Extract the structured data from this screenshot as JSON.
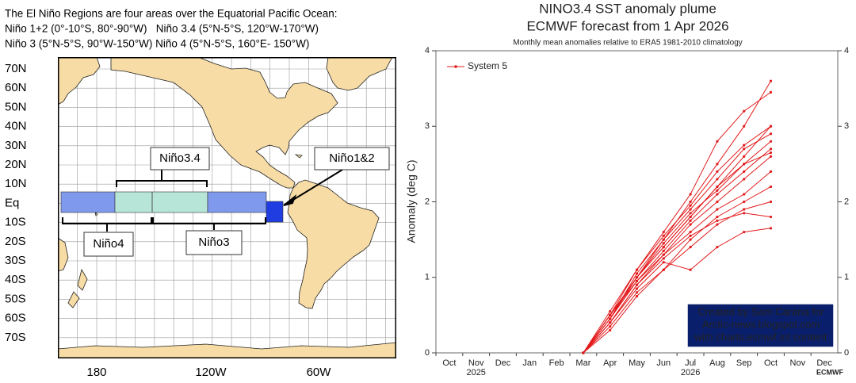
{
  "map": {
    "header": [
      "The El Niño Regions are four areas over the Equatorial Pacific Ocean:",
      "Niño 1+2 (0°-10°S, 80°-90°W)   Niño 3.4 (5°N-5°S, 120°W-170°W)",
      "Niño 3 (5°N-5°S, 90°W-150°W) Niño 4 (5°N-5°S, 160°E- 150°W)"
    ],
    "lat_labels": [
      "70N",
      "60N",
      "50N",
      "40N",
      "30N",
      "20N",
      "10N",
      "Eq",
      "10S",
      "20S",
      "30S",
      "40S",
      "50S",
      "60S",
      "70S"
    ],
    "lon_labels": [
      "180",
      "120W",
      "60W"
    ],
    "regions": {
      "nino34": "Niño3.4",
      "nino12": "Niño1&2",
      "nino4": "Niño4",
      "nino3": "Niño3"
    }
  },
  "chart_data": {
    "type": "line",
    "title": "NINO3.4 SST anomaly plume",
    "subtitle": "ECMWF forecast from 1 Apr 2026",
    "note": "Monthly mean anomalies relative to ERA5 1981-2010 climatology",
    "y_label": "Anomaly (deg C)",
    "categories": [
      "Oct",
      "Nov",
      "Dec",
      "Jan",
      "Feb",
      "Mar",
      "Apr",
      "May",
      "Jun",
      "Jul",
      "Aug",
      "Sep",
      "Oct",
      "Nov",
      "Dec"
    ],
    "years": [
      {
        "index": 1,
        "label": "2025"
      },
      {
        "index": 9,
        "label": "2026"
      }
    ],
    "ylim": [
      0,
      4
    ],
    "yticks": [
      0,
      1,
      2,
      3,
      4
    ],
    "y2lim": [
      0,
      4
    ],
    "y2ticks": [
      0,
      1,
      2,
      3,
      4
    ],
    "legend": "top-left",
    "series": [
      {
        "name": "System 5",
        "color": "#e31a1c",
        "members": [
          [
            null,
            null,
            null,
            null,
            null,
            0,
            0.5,
            1.0,
            1.5,
            2.0,
            2.5,
            3.0,
            3.6,
            null,
            null
          ],
          [
            null,
            null,
            null,
            null,
            null,
            0,
            0.5,
            1.1,
            1.6,
            2.1,
            2.8,
            3.2,
            3.45,
            null,
            null
          ],
          [
            null,
            null,
            null,
            null,
            null,
            0,
            0.45,
            1.0,
            1.4,
            1.8,
            2.2,
            2.6,
            3.0,
            null,
            null
          ],
          [
            null,
            null,
            null,
            null,
            null,
            0,
            0.4,
            0.9,
            1.3,
            1.7,
            2.0,
            2.3,
            2.6,
            null,
            null
          ],
          [
            null,
            null,
            null,
            null,
            null,
            0,
            0.5,
            0.95,
            1.35,
            1.75,
            2.1,
            2.4,
            2.7,
            null,
            null
          ],
          [
            null,
            null,
            null,
            null,
            null,
            0,
            0.35,
            0.8,
            1.1,
            1.5,
            1.8,
            2.0,
            2.2,
            null,
            null
          ],
          [
            null,
            null,
            null,
            null,
            null,
            0,
            0.45,
            1.05,
            1.5,
            1.9,
            2.3,
            2.7,
            2.9,
            null,
            null
          ],
          [
            null,
            null,
            null,
            null,
            null,
            0,
            0.4,
            0.85,
            1.2,
            1.1,
            1.4,
            1.6,
            1.65,
            null,
            null
          ],
          [
            null,
            null,
            null,
            null,
            null,
            0,
            0.5,
            1.0,
            1.45,
            1.85,
            2.15,
            2.5,
            2.8,
            null,
            null
          ],
          [
            null,
            null,
            null,
            null,
            null,
            0,
            0.3,
            0.75,
            1.1,
            1.4,
            1.7,
            1.9,
            2.0,
            null,
            null
          ],
          [
            null,
            null,
            null,
            null,
            null,
            0,
            0.55,
            1.1,
            1.55,
            1.95,
            2.4,
            2.75,
            3.0,
            null,
            null
          ],
          [
            null,
            null,
            null,
            null,
            null,
            0,
            0.45,
            0.95,
            1.3,
            1.6,
            1.9,
            2.1,
            2.4,
            null,
            null
          ],
          [
            null,
            null,
            null,
            null,
            null,
            0,
            0.4,
            0.9,
            1.25,
            1.55,
            1.75,
            1.85,
            1.8,
            null,
            null
          ],
          [
            null,
            null,
            null,
            null,
            null,
            0,
            0.5,
            1.0,
            1.4,
            1.8,
            2.2,
            2.5,
            2.65,
            null,
            null
          ]
        ]
      }
    ],
    "annotation": [
      "Created by Sam Carana for",
      "Arctic-news.blogspot.com",
      "with charts.ecmwf.int content"
    ],
    "logo": "ECMWF"
  }
}
